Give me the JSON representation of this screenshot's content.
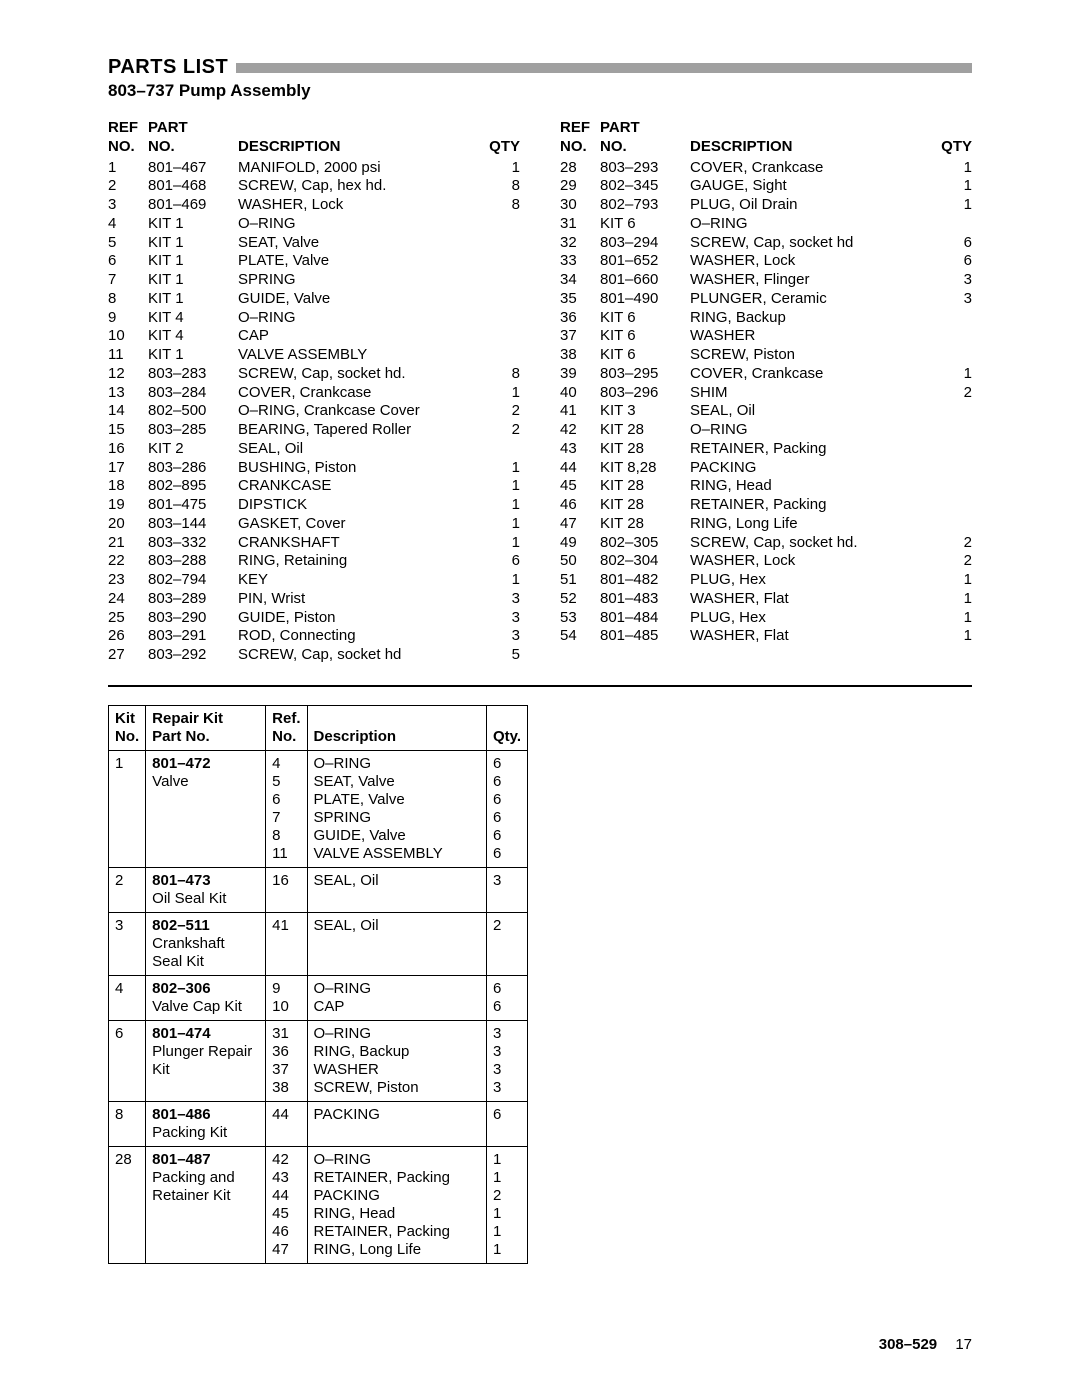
{
  "title": "PARTS LIST",
  "subtitle": "803–737 Pump Assembly",
  "headers": {
    "ref": "REF NO.",
    "part": "PART NO.",
    "desc": "DESCRIPTION",
    "qty": "QTY"
  },
  "parts_left": [
    {
      "ref": "1",
      "part": "801–467",
      "desc": "MANIFOLD, 2000 psi",
      "qty": "1"
    },
    {
      "ref": "2",
      "part": "801–468",
      "desc": "SCREW, Cap, hex hd.",
      "qty": "8"
    },
    {
      "ref": "3",
      "part": "801–469",
      "desc": "WASHER, Lock",
      "qty": "8"
    },
    {
      "ref": "4",
      "part": "KIT 1",
      "desc": "O–RING",
      "qty": ""
    },
    {
      "ref": "5",
      "part": "KIT 1",
      "desc": "SEAT, Valve",
      "qty": ""
    },
    {
      "ref": "6",
      "part": "KIT 1",
      "desc": "PLATE, Valve",
      "qty": ""
    },
    {
      "ref": "7",
      "part": "KIT 1",
      "desc": "SPRING",
      "qty": ""
    },
    {
      "ref": "8",
      "part": "KIT 1",
      "desc": "GUIDE, Valve",
      "qty": ""
    },
    {
      "ref": "9",
      "part": "KIT 4",
      "desc": "O–RING",
      "qty": ""
    },
    {
      "ref": "10",
      "part": "KIT 4",
      "desc": "CAP",
      "qty": ""
    },
    {
      "ref": "11",
      "part": "KIT 1",
      "desc": "VALVE ASSEMBLY",
      "qty": ""
    },
    {
      "ref": "12",
      "part": "803–283",
      "desc": "SCREW, Cap, socket hd.",
      "qty": "8"
    },
    {
      "ref": "13",
      "part": "803–284",
      "desc": "COVER, Crankcase",
      "qty": "1"
    },
    {
      "ref": "14",
      "part": "802–500",
      "desc": "O–RING, Crankcase Cover",
      "qty": "2"
    },
    {
      "ref": "15",
      "part": "803–285",
      "desc": "BEARING, Tapered Roller",
      "qty": "2"
    },
    {
      "ref": "16",
      "part": "KIT 2",
      "desc": "SEAL, Oil",
      "qty": ""
    },
    {
      "ref": "17",
      "part": "803–286",
      "desc": "BUSHING, Piston",
      "qty": "1"
    },
    {
      "ref": "18",
      "part": "802–895",
      "desc": "CRANKCASE",
      "qty": "1"
    },
    {
      "ref": "19",
      "part": "801–475",
      "desc": "DIPSTICK",
      "qty": "1"
    },
    {
      "ref": "20",
      "part": "803–144",
      "desc": "GASKET, Cover",
      "qty": "1"
    },
    {
      "ref": "21",
      "part": "803–332",
      "desc": "CRANKSHAFT",
      "qty": "1"
    },
    {
      "ref": "22",
      "part": "803–288",
      "desc": "RING, Retaining",
      "qty": "6"
    },
    {
      "ref": "23",
      "part": "802–794",
      "desc": "KEY",
      "qty": "1"
    },
    {
      "ref": "24",
      "part": "803–289",
      "desc": "PIN, Wrist",
      "qty": "3"
    },
    {
      "ref": "25",
      "part": "803–290",
      "desc": "GUIDE, Piston",
      "qty": "3"
    },
    {
      "ref": "26",
      "part": "803–291",
      "desc": "ROD, Connecting",
      "qty": "3"
    },
    {
      "ref": "27",
      "part": "803–292",
      "desc": "SCREW, Cap, socket hd",
      "qty": "5"
    }
  ],
  "parts_right": [
    {
      "ref": "28",
      "part": "803–293",
      "desc": "COVER, Crankcase",
      "qty": "1"
    },
    {
      "ref": "29",
      "part": "802–345",
      "desc": "GAUGE, Sight",
      "qty": "1"
    },
    {
      "ref": "30",
      "part": "802–793",
      "desc": "PLUG, Oil Drain",
      "qty": "1"
    },
    {
      "ref": "31",
      "part": "KIT 6",
      "desc": "O–RING",
      "qty": ""
    },
    {
      "ref": "32",
      "part": "803–294",
      "desc": "SCREW, Cap, socket hd",
      "qty": "6"
    },
    {
      "ref": "33",
      "part": "801–652",
      "desc": "WASHER, Lock",
      "qty": "6"
    },
    {
      "ref": "34",
      "part": "801–660",
      "desc": "WASHER, Flinger",
      "qty": "3"
    },
    {
      "ref": "35",
      "part": "801–490",
      "desc": "PLUNGER, Ceramic",
      "qty": "3"
    },
    {
      "ref": "36",
      "part": "KIT 6",
      "desc": "RING, Backup",
      "qty": ""
    },
    {
      "ref": "37",
      "part": "KIT 6",
      "desc": "WASHER",
      "qty": ""
    },
    {
      "ref": "38",
      "part": "KIT 6",
      "desc": "SCREW, Piston",
      "qty": ""
    },
    {
      "ref": "39",
      "part": "803–295",
      "desc": "COVER, Crankcase",
      "qty": "1"
    },
    {
      "ref": "40",
      "part": "803–296",
      "desc": "SHIM",
      "qty": "2"
    },
    {
      "ref": "41",
      "part": "KIT 3",
      "desc": "SEAL, Oil",
      "qty": ""
    },
    {
      "ref": "42",
      "part": "KIT 28",
      "desc": "O–RING",
      "qty": ""
    },
    {
      "ref": "43",
      "part": "KIT 28",
      "desc": "RETAINER, Packing",
      "qty": ""
    },
    {
      "ref": "44",
      "part": "KIT 8,28",
      "desc": "PACKING",
      "qty": ""
    },
    {
      "ref": "45",
      "part": "KIT 28",
      "desc": "RING, Head",
      "qty": ""
    },
    {
      "ref": "46",
      "part": "KIT 28",
      "desc": "RETAINER, Packing",
      "qty": ""
    },
    {
      "ref": "47",
      "part": "KIT 28",
      "desc": "RING, Long Life",
      "qty": ""
    },
    {
      "ref": "49",
      "part": "802–305",
      "desc": "SCREW, Cap, socket hd.",
      "qty": "2"
    },
    {
      "ref": "50",
      "part": "802–304",
      "desc": "WASHER, Lock",
      "qty": "2"
    },
    {
      "ref": "51",
      "part": "801–482",
      "desc": "PLUG, Hex",
      "qty": "1"
    },
    {
      "ref": "52",
      "part": "801–483",
      "desc": "WASHER, Flat",
      "qty": "1"
    },
    {
      "ref": "53",
      "part": "801–484",
      "desc": "PLUG, Hex",
      "qty": "1"
    },
    {
      "ref": "54",
      "part": "801–485",
      "desc": "WASHER, Flat",
      "qty": "1"
    }
  ],
  "kit_headers": {
    "kitno": "Kit No.",
    "kitpart": "Repair Kit Part No.",
    "kitref": "Ref. No.",
    "kitdesc": "Description",
    "kitqty": "Qty."
  },
  "kits": [
    {
      "no": "1",
      "part_bold": "801–472",
      "part_plain": "Valve",
      "rows": [
        {
          "ref": "4",
          "desc": "O–RING",
          "qty": "6"
        },
        {
          "ref": "5",
          "desc": "SEAT, Valve",
          "qty": "6"
        },
        {
          "ref": "6",
          "desc": "PLATE, Valve",
          "qty": "6"
        },
        {
          "ref": "7",
          "desc": "SPRING",
          "qty": "6"
        },
        {
          "ref": "8",
          "desc": "GUIDE, Valve",
          "qty": "6"
        },
        {
          "ref": "11",
          "desc": "VALVE ASSEMBLY",
          "qty": "6"
        }
      ]
    },
    {
      "no": "2",
      "part_bold": "801–473",
      "part_plain": "Oil Seal Kit",
      "rows": [
        {
          "ref": "16",
          "desc": "SEAL, Oil",
          "qty": "3"
        }
      ]
    },
    {
      "no": "3",
      "part_bold": "802–511",
      "part_plain": "Crankshaft Seal Kit",
      "rows": [
        {
          "ref": "41",
          "desc": "SEAL, Oil",
          "qty": "2"
        }
      ]
    },
    {
      "no": "4",
      "part_bold": "802–306",
      "part_plain": "Valve Cap Kit",
      "rows": [
        {
          "ref": "9",
          "desc": "O–RING",
          "qty": "6"
        },
        {
          "ref": "10",
          "desc": "CAP",
          "qty": "6"
        }
      ]
    },
    {
      "no": "6",
      "part_bold": "801–474",
      "part_plain": "Plunger Repair Kit",
      "rows": [
        {
          "ref": "31",
          "desc": "O–RING",
          "qty": "3"
        },
        {
          "ref": "36",
          "desc": "RING, Backup",
          "qty": "3"
        },
        {
          "ref": "37",
          "desc": "WASHER",
          "qty": "3"
        },
        {
          "ref": "38",
          "desc": "SCREW, Piston",
          "qty": "3"
        }
      ]
    },
    {
      "no": "8",
      "part_bold": "801–486",
      "part_plain": "Packing Kit",
      "rows": [
        {
          "ref": "44",
          "desc": "PACKING",
          "qty": "6"
        }
      ]
    },
    {
      "no": "28",
      "part_bold": "801–487",
      "part_plain": "Packing and Retainer Kit",
      "rows": [
        {
          "ref": "42",
          "desc": "O–RING",
          "qty": "1"
        },
        {
          "ref": "43",
          "desc": "RETAINER, Packing",
          "qty": "1"
        },
        {
          "ref": "44",
          "desc": "PACKING",
          "qty": "2"
        },
        {
          "ref": "45",
          "desc": "RING, Head",
          "qty": "1"
        },
        {
          "ref": "46",
          "desc": "RETAINER, Packing",
          "qty": "1"
        },
        {
          "ref": "47",
          "desc": "RING, Long Life",
          "qty": "1"
        }
      ]
    }
  ],
  "footer": {
    "doc": "308–529",
    "page": "17"
  },
  "colors": {
    "title_bar": "#a0a0a0",
    "text": "#000000",
    "bg": "#ffffff"
  }
}
